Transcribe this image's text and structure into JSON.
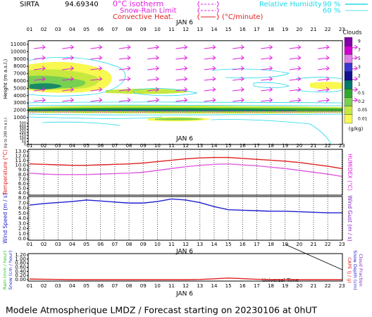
{
  "header": {
    "station": "SIRTA",
    "coordinate": "94.69340",
    "legend": [
      {
        "name": "0°C isotherm",
        "color": "#e020e0"
      },
      {
        "name": "Snow-Rain Limit",
        "color": "#e020e0"
      },
      {
        "name": "Convective Heat.",
        "unit": "(°C/minute)",
        "color": "#e02020"
      },
      {
        "name": "Relative Humidity",
        "color": "#20d8e8",
        "levels": [
          {
            "value": 90,
            "label": "90 %"
          },
          {
            "value": 60,
            "label": "60 %"
          }
        ]
      }
    ]
  },
  "chart_data": [
    {
      "type": "contour",
      "date_label": "JAN 6",
      "categories": [
        "01",
        "02",
        "03",
        "04",
        "05",
        "06",
        "07",
        "08",
        "09",
        "10",
        "11",
        "12",
        "13",
        "14",
        "15",
        "16",
        "17",
        "18",
        "19",
        "20",
        "21",
        "22",
        "23"
      ],
      "ylabel": "Height (m a.s.l.)",
      "ylabel2": "Up to 200 m a.s.l.",
      "ylim": [
        0,
        11500
      ],
      "yticks": [
        11000,
        10000,
        9000,
        8000,
        7000,
        6000,
        5000,
        4000,
        3000,
        2000,
        1000,
        500,
        400,
        300,
        200,
        150,
        100,
        50,
        0
      ],
      "arrow_color": "#e020e0",
      "colorbar": {
        "title": "Clouds",
        "unit": "(g/kg)",
        "levels": [
          9,
          7,
          5,
          3,
          2,
          1,
          0.5,
          0.2,
          0.05,
          0.01
        ],
        "colors": [
          "#8000a8",
          "#d000d0",
          "#e080e8",
          "#3838d0",
          "#101090",
          "#00786c",
          "#30a830",
          "#78d050",
          "#c8e840",
          "#f8f850"
        ]
      }
    },
    {
      "type": "line",
      "date_label": "JAN 6",
      "categories": [
        "01",
        "02",
        "03",
        "04",
        "05",
        "06",
        "07",
        "08",
        "09",
        "10",
        "11",
        "12",
        "13",
        "14",
        "15",
        "16",
        "17",
        "18",
        "19",
        "20",
        "21",
        "22",
        "23"
      ],
      "ylabel": "Temperature (°C)",
      "ylabel_color": "#e02020",
      "y2label": "HUMIDEX (°C)",
      "y2label_color": "#e020e0",
      "ylim": [
        4,
        13
      ],
      "yticks": [
        {
          "value": 13,
          "label": "13.0"
        },
        {
          "value": 12,
          "label": "12.0"
        },
        {
          "value": 11,
          "label": "11.0"
        },
        {
          "value": 10,
          "label": "10.0"
        },
        {
          "value": 9,
          "label": "9.0"
        },
        {
          "value": 8,
          "label": "8.0"
        },
        {
          "value": 7,
          "label": "7.0"
        },
        {
          "value": 6,
          "label": "6.0"
        },
        {
          "value": 5,
          "label": "5.0"
        },
        {
          "value": 4,
          "label": "4.0"
        }
      ],
      "series": [
        {
          "color": "#e02020",
          "values": [
            10.3,
            10.2,
            10.1,
            10.0,
            10.0,
            10.1,
            10.2,
            10.3,
            10.5,
            10.8,
            11.1,
            11.4,
            11.6,
            11.7,
            11.7,
            11.5,
            11.3,
            11.1,
            10.9,
            10.6,
            10.2,
            9.8,
            9.3
          ]
        },
        {
          "color": "#e060e0",
          "values": [
            8.3,
            8.1,
            8.0,
            8.0,
            8.0,
            8.1,
            8.2,
            8.3,
            8.5,
            8.9,
            9.3,
            9.7,
            10.0,
            10.2,
            10.3,
            10.1,
            9.9,
            9.6,
            9.3,
            8.9,
            8.5,
            8.1,
            7.6
          ]
        }
      ]
    },
    {
      "type": "line",
      "date_label": "JAN 6",
      "categories": [
        "01",
        "02",
        "03",
        "04",
        "05",
        "06",
        "07",
        "08",
        "09",
        "10",
        "11",
        "12",
        "13",
        "14",
        "15",
        "16",
        "17",
        "18",
        "19",
        "20",
        "21",
        "22",
        "23"
      ],
      "ylabel": "Wind Speed (m / s)",
      "ylabel_color": "#2020d0",
      "y2label": "Wind Gust (m / s)",
      "y2label_color": "#8020c0",
      "ylim": [
        0,
        8
      ],
      "yticks": [
        {
          "value": 8,
          "label": "8.0"
        },
        {
          "value": 7,
          "label": "7.0"
        },
        {
          "value": 6,
          "label": "6.0"
        },
        {
          "value": 5,
          "label": "5.0"
        },
        {
          "value": 4,
          "label": "4.0"
        },
        {
          "value": 3,
          "label": "3.0"
        },
        {
          "value": 2,
          "label": "2.0"
        },
        {
          "value": 1,
          "label": "1.0"
        },
        {
          "value": 0,
          "label": "0.0"
        }
      ],
      "series": [
        {
          "color": "#2020d0",
          "values": [
            6.6,
            6.9,
            7.1,
            7.3,
            7.6,
            7.4,
            7.2,
            7.0,
            7.0,
            7.3,
            7.8,
            7.6,
            7.1,
            6.3,
            5.7,
            5.6,
            5.5,
            5.4,
            5.4,
            5.3,
            5.2,
            5.1,
            5.1
          ]
        }
      ]
    },
    {
      "type": "line",
      "date_label": "JAN 6",
      "xlabel": "Universal Time",
      "categories": [
        "01",
        "02",
        "03",
        "04",
        "05",
        "06",
        "07",
        "08",
        "09",
        "10",
        "11",
        "12",
        "13",
        "14",
        "15",
        "16",
        "17",
        "18",
        "19",
        "20",
        "21",
        "22",
        "23"
      ],
      "ylabels": [
        {
          "text": "Rain (mm / hour)",
          "color": "#20c020"
        },
        {
          "text": "Snow (cm / hour)",
          "color": "#2020d0"
        }
      ],
      "y2labels": [
        {
          "text": "CAPE (J / g)",
          "color": "#e02020"
        },
        {
          "text": "Snow Depth (cm)",
          "color": "#2020d0"
        },
        {
          "text": "Cloud Fraction",
          "color": "#8020c0"
        }
      ],
      "ylim": [
        0,
        1.2
      ],
      "yticks": [
        {
          "value": 1.2,
          "label": "1.20"
        },
        {
          "value": 1,
          "label": "1.00"
        },
        {
          "value": 0.8,
          "label": "0.80"
        },
        {
          "value": 0.6,
          "label": "0.60"
        },
        {
          "value": 0.4,
          "label": "0.40"
        },
        {
          "value": 0.2,
          "label": "0.20"
        },
        {
          "value": 0,
          "label": "0.00"
        }
      ],
      "series": [
        {
          "color": "#e02020",
          "values": [
            0.03,
            0.02,
            0.01,
            0,
            0,
            0,
            0,
            0,
            0,
            0,
            0,
            0,
            0.01,
            0.04,
            0.08,
            0.05,
            0.02,
            0,
            0,
            0,
            0,
            0,
            0
          ]
        }
      ]
    }
  ],
  "footer": "Modele Atmospherique LMDZ / Forecast starting on 20230106 at 0hUT"
}
